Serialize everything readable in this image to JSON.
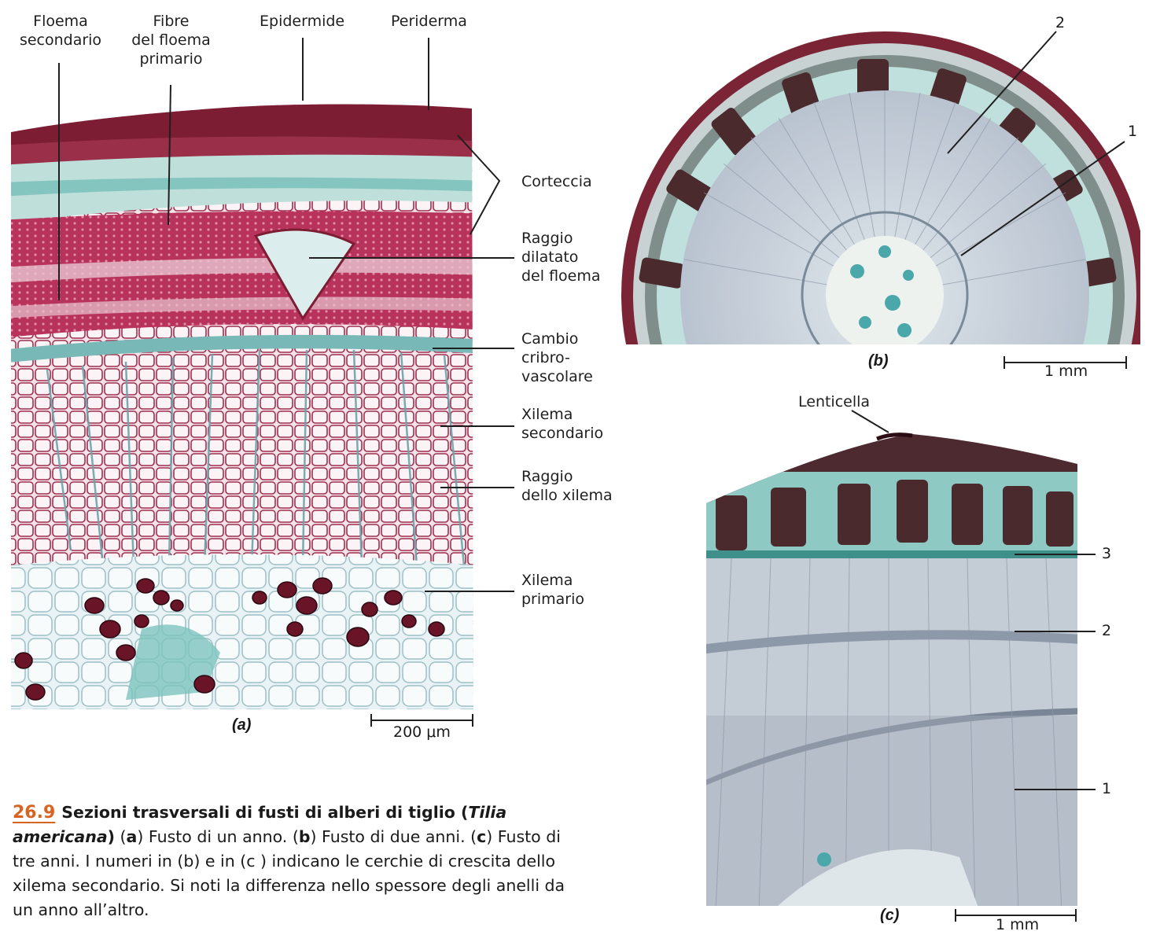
{
  "panel_a": {
    "labels": {
      "floema_secondario": [
        "Floema",
        "secondario"
      ],
      "fibre": [
        "Fibre",
        "del floema",
        "primario"
      ],
      "epidermide": "Epidermide",
      "periderma": "Periderma",
      "corteccia": "Corteccia",
      "raggio_dilatato": [
        "Raggio",
        "dilatato",
        "del floema"
      ],
      "cambio": [
        "Cambio",
        "cribro-",
        "vascolare"
      ],
      "xilema_secondario": [
        "Xilema",
        "secondario"
      ],
      "raggio_xilema": [
        "Raggio",
        "dello xilema"
      ],
      "xilema_primario": [
        "Xilema",
        "primario"
      ]
    },
    "tag": "(a)",
    "scale": "200 μm"
  },
  "panel_b": {
    "tag": "(b)",
    "scale": "1 mm",
    "numbers": [
      "2",
      "1"
    ]
  },
  "panel_c": {
    "tag": "(c)",
    "scale": "1 mm",
    "lenticella": "Lenticella",
    "numbers": [
      "3",
      "2",
      "1"
    ]
  },
  "caption": {
    "figure": "26.9",
    "title_start": "Sezioni trasversali di fusti di alberi di tiglio (",
    "species": "Tilia americana",
    "title_end": ")",
    "body": [
      {
        "text": " (",
        "bold": false
      },
      {
        "text": "a",
        "bold": true
      },
      {
        "text": ") Fusto di un anno. (",
        "bold": false
      },
      {
        "text": "b",
        "bold": true
      },
      {
        "text": ") Fusto di due anni. (",
        "bold": false
      },
      {
        "text": "c",
        "bold": true
      },
      {
        "text": ") Fusto di tre anni. I numeri in (b) e in (c ) indicano le cerchie di crescita dello xilema secondario. Si noti la differenza nello spessore degli anelli da un anno all’altro.",
        "bold": false
      }
    ]
  },
  "colors": {
    "stain_red": "#a0304f",
    "stain_dark": "#5a1020",
    "stain_teal": "#5fb3ad",
    "wood_gray": "#c9ced6",
    "accent": "#d9641f"
  }
}
